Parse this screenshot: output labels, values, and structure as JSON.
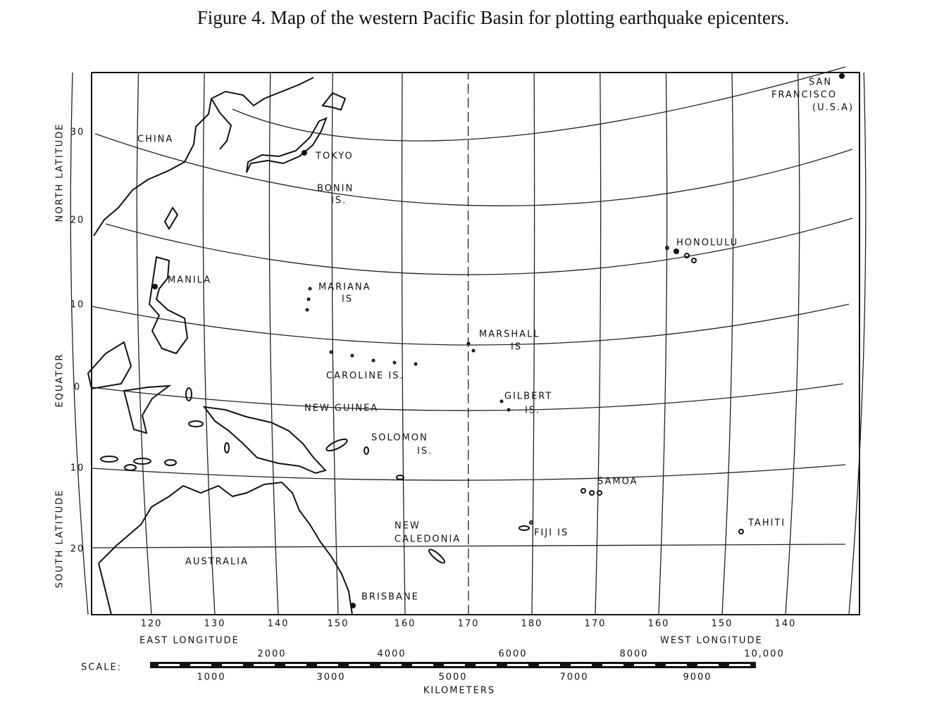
{
  "title": "Figure 4. Map of the western Pacific Basin for plotting earthquake epicenters.",
  "latitude": {
    "north": "NORTH LATITUDE",
    "equator": "EQUATOR",
    "south": "SOUTH LATITUDE",
    "ticks": [
      "30",
      "20",
      "10",
      "0",
      "10",
      "20"
    ]
  },
  "longitude": {
    "ticks": [
      "120",
      "130",
      "140",
      "150",
      "160",
      "170",
      "180",
      "170",
      "160",
      "150",
      "140"
    ],
    "east": "EAST LONGITUDE",
    "west": "WEST LONGITUDE"
  },
  "places": [
    {
      "lines": [
        "CHINA"
      ]
    },
    {
      "lines": [
        "TOKYO"
      ]
    },
    {
      "lines": [
        "BONIN",
        "IS."
      ]
    },
    {
      "lines": [
        "MANILA"
      ]
    },
    {
      "lines": [
        "MARIANA",
        "IS"
      ]
    },
    {
      "lines": [
        "MARSHALL",
        "IS"
      ]
    },
    {
      "lines": [
        "CAROLINE IS."
      ]
    },
    {
      "lines": [
        "GILBERT",
        "IS."
      ]
    },
    {
      "lines": [
        "NEW GUINEA"
      ]
    },
    {
      "lines": [
        "SOLOMON",
        "IS."
      ]
    },
    {
      "lines": [
        "HONOLULU"
      ]
    },
    {
      "lines": [
        "SAN",
        "FRANCISCO",
        "(U.S.A)"
      ]
    },
    {
      "lines": [
        "SAMOA"
      ]
    },
    {
      "lines": [
        "NEW",
        "CALEDONIA"
      ]
    },
    {
      "lines": [
        "FIJI IS"
      ]
    },
    {
      "lines": [
        "TAHITI"
      ]
    },
    {
      "lines": [
        "AUSTRALIA"
      ]
    },
    {
      "lines": [
        "BRISBANE"
      ]
    }
  ],
  "scale": {
    "label": "SCALE:",
    "upper": [
      "2000",
      "4000",
      "6000",
      "8000",
      "10,000"
    ],
    "lower": [
      "1000",
      "3000",
      "5000",
      "7000",
      "9000"
    ],
    "unit": "KILOMETERS"
  }
}
